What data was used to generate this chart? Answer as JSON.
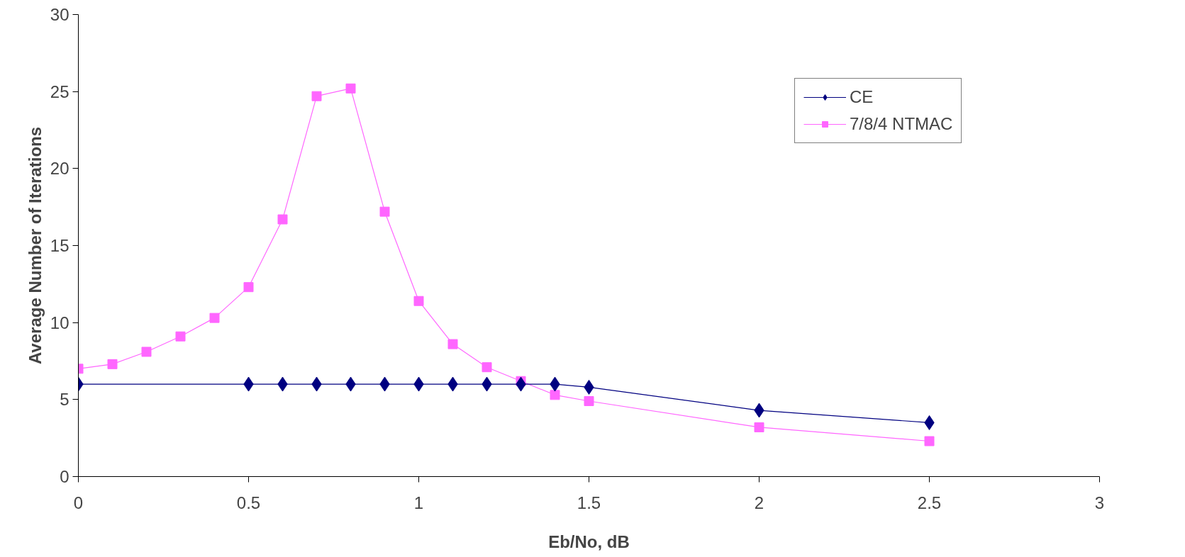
{
  "chart_data": {
    "type": "line",
    "xlabel": "Eb/No, dB",
    "ylabel": "Average Number of Iterations",
    "xlim": [
      0,
      3
    ],
    "xticks": [
      0,
      0.5,
      1,
      1.5,
      2,
      2.5,
      3
    ],
    "ylim": [
      0,
      30
    ],
    "yticks": [
      0,
      5,
      10,
      15,
      20,
      25,
      30
    ],
    "grid": false,
    "legend": "top right",
    "series": [
      {
        "name": "CE",
        "color": "#000080",
        "marker": "diamond",
        "x": [
          0,
          0.5,
          0.6,
          0.7,
          0.8,
          0.9,
          1.0,
          1.1,
          1.2,
          1.3,
          1.4,
          1.5,
          2.0,
          2.5
        ],
        "values": [
          6.0,
          6.0,
          6.0,
          6.0,
          6.0,
          6.0,
          6.0,
          6.0,
          6.0,
          6.0,
          6.0,
          5.8,
          4.3,
          3.5
        ]
      },
      {
        "name": "7/8/4 NTMAC",
        "color": "#ff66ff",
        "marker": "square",
        "x": [
          0,
          0.1,
          0.2,
          0.3,
          0.4,
          0.5,
          0.6,
          0.7,
          0.8,
          0.9,
          1.0,
          1.1,
          1.2,
          1.3,
          1.4,
          1.5,
          2.0,
          2.5
        ],
        "values": [
          7.0,
          7.3,
          8.1,
          9.1,
          10.3,
          12.3,
          16.7,
          24.7,
          25.2,
          17.2,
          11.4,
          8.6,
          7.1,
          6.2,
          5.3,
          4.9,
          3.2,
          2.3
        ]
      }
    ]
  }
}
